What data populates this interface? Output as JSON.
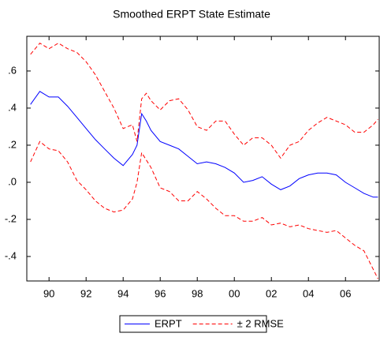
{
  "chart_data": {
    "type": "line",
    "title": "Smoothed ERPT State Estimate",
    "x": [
      1989.0,
      1989.5,
      1990.0,
      1990.5,
      1991.0,
      1991.5,
      1992.0,
      1992.5,
      1993.0,
      1993.5,
      1994.0,
      1994.5,
      1994.75,
      1995.0,
      1995.25,
      1995.5,
      1996.0,
      1996.5,
      1997.0,
      1997.5,
      1998.0,
      1998.5,
      1999.0,
      1999.5,
      2000.0,
      2000.5,
      2001.0,
      2001.5,
      2002.0,
      2002.5,
      2003.0,
      2003.5,
      2004.0,
      2004.5,
      2005.0,
      2005.5,
      2006.0,
      2006.5,
      2007.0,
      2007.5,
      2007.75
    ],
    "series": [
      {
        "name": "ERPT",
        "color": "#0000ff",
        "dashed": false,
        "values": [
          0.42,
          0.49,
          0.46,
          0.46,
          0.41,
          0.35,
          0.29,
          0.23,
          0.18,
          0.13,
          0.09,
          0.15,
          0.2,
          0.37,
          0.33,
          0.28,
          0.22,
          0.2,
          0.18,
          0.14,
          0.1,
          0.11,
          0.1,
          0.08,
          0.05,
          0.0,
          0.01,
          0.03,
          -0.01,
          -0.04,
          -0.02,
          0.02,
          0.04,
          0.05,
          0.05,
          0.04,
          0.0,
          -0.03,
          -0.06,
          -0.08,
          -0.08
        ]
      },
      {
        "name": "± 2 RMSE",
        "color": "#ff0000",
        "dashed": true,
        "values": [
          0.69,
          0.75,
          0.72,
          0.75,
          0.72,
          0.7,
          0.65,
          0.58,
          0.49,
          0.4,
          0.29,
          0.31,
          0.22,
          0.45,
          0.48,
          0.44,
          0.39,
          0.44,
          0.45,
          0.39,
          0.3,
          0.28,
          0.33,
          0.33,
          0.26,
          0.2,
          0.24,
          0.24,
          0.2,
          0.13,
          0.2,
          0.22,
          0.28,
          0.32,
          0.35,
          0.33,
          0.31,
          0.27,
          0.27,
          0.31,
          0.34
        ],
        "lower": [
          0.11,
          0.22,
          0.18,
          0.17,
          0.11,
          0.01,
          -0.04,
          -0.1,
          -0.14,
          -0.16,
          -0.15,
          -0.09,
          0.0,
          0.16,
          0.12,
          0.08,
          -0.03,
          -0.05,
          -0.1,
          -0.1,
          -0.05,
          -0.09,
          -0.14,
          -0.18,
          -0.18,
          -0.21,
          -0.21,
          -0.19,
          -0.23,
          -0.22,
          -0.24,
          -0.23,
          -0.25,
          -0.26,
          -0.27,
          -0.26,
          -0.3,
          -0.34,
          -0.37,
          -0.47,
          -0.52
        ]
      }
    ],
    "xlim": [
      1988.8,
      2007.82
    ],
    "xticks": [
      {
        "value": 1990,
        "label": "90"
      },
      {
        "value": 1992,
        "label": "92"
      },
      {
        "value": 1994,
        "label": "94"
      },
      {
        "value": 1996,
        "label": "96"
      },
      {
        "value": 1998,
        "label": "98"
      },
      {
        "value": 2000,
        "label": "00"
      },
      {
        "value": 2002,
        "label": "02"
      },
      {
        "value": 2004,
        "label": "04"
      },
      {
        "value": 2006,
        "label": "06"
      }
    ],
    "ylim": [
      -0.532,
      0.787
    ],
    "yticks": [
      {
        "value": -0.4,
        "label": "-.4"
      },
      {
        "value": -0.2,
        "label": "-.2"
      },
      {
        "value": 0,
        "label": ".0"
      },
      {
        "value": 0.2,
        "label": ".2"
      },
      {
        "value": 0.4,
        "label": ".4"
      },
      {
        "value": 0.6,
        "label": ".6"
      }
    ],
    "grid": false
  }
}
